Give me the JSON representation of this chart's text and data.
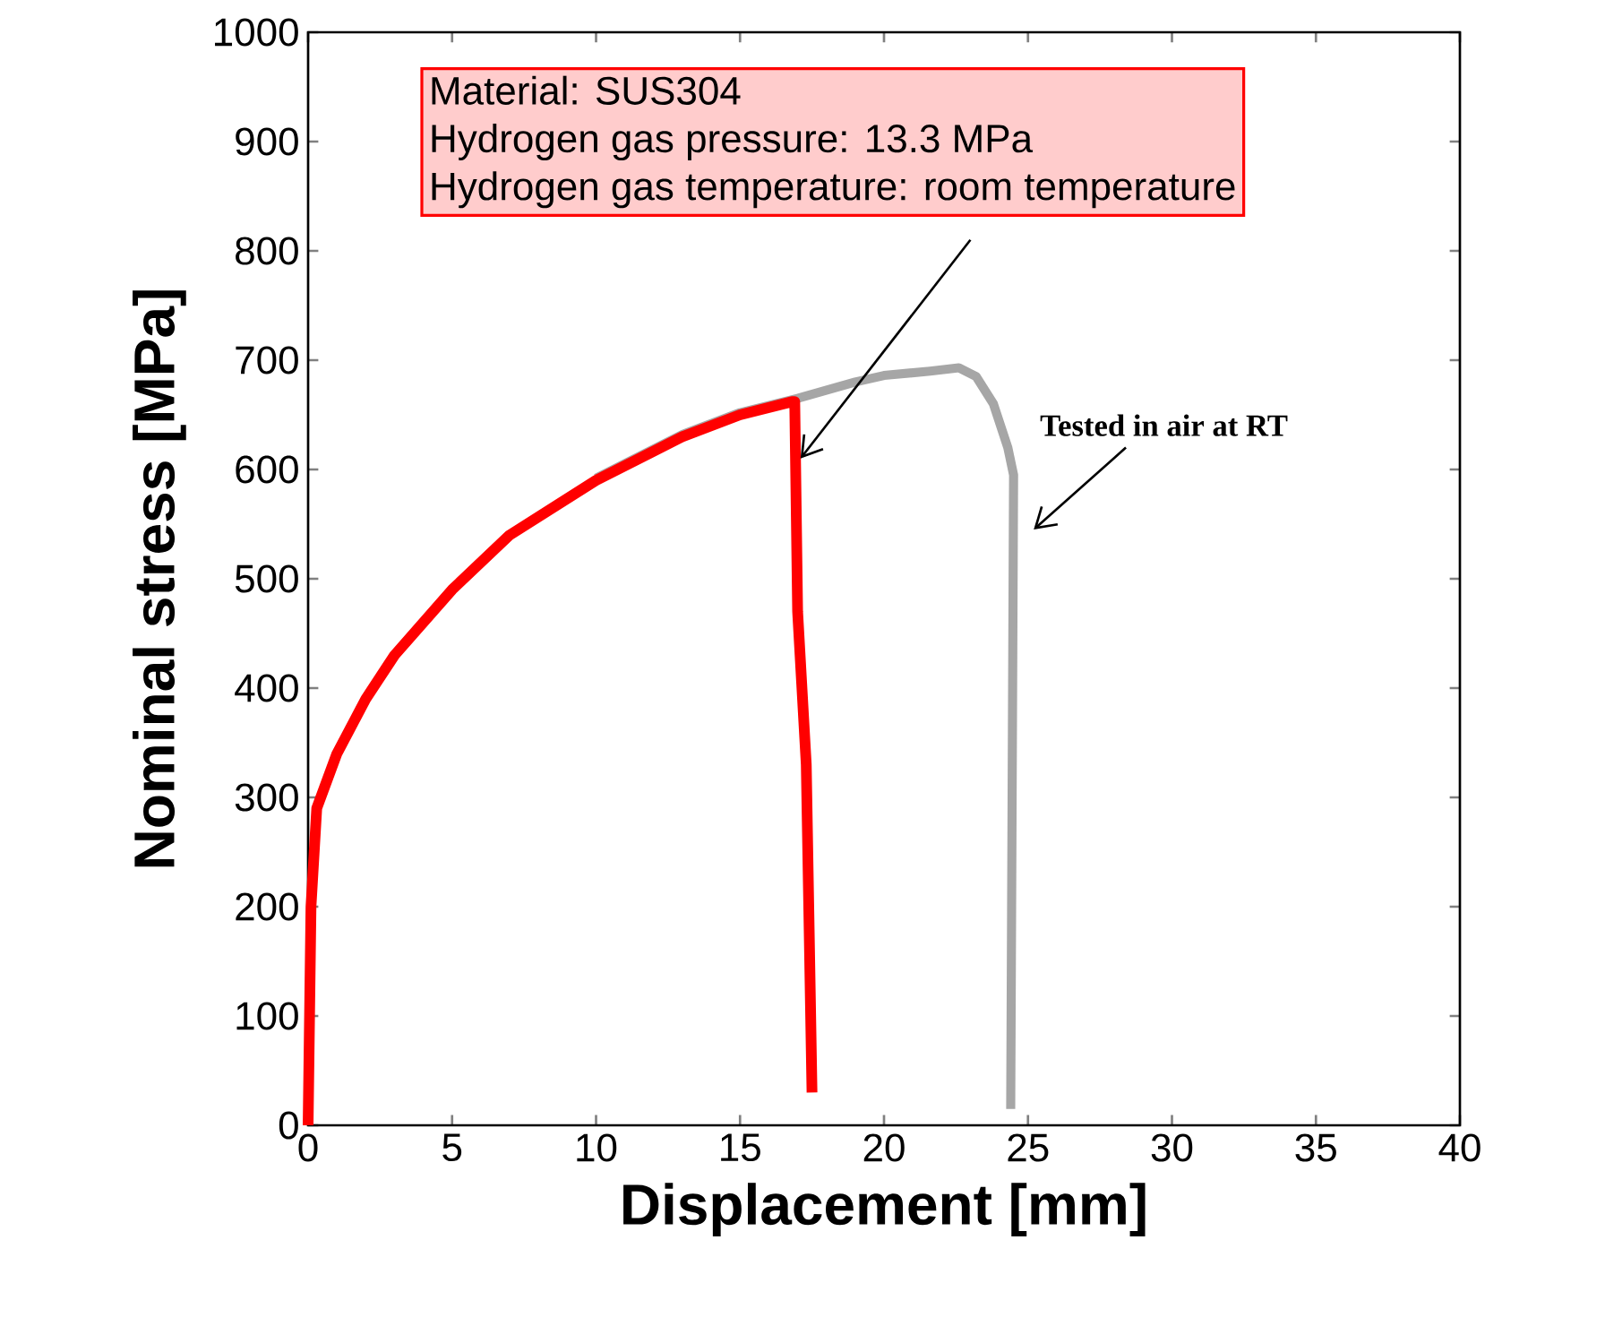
{
  "chart_data": {
    "type": "line",
    "xlabel": "Displacement  [mm]",
    "ylabel": "Nominal stress [MPa]",
    "xlim": [
      0,
      40
    ],
    "ylim": [
      0,
      1000
    ],
    "xticks": [
      0,
      5,
      10,
      15,
      20,
      25,
      30,
      35,
      40
    ],
    "yticks": [
      0,
      100,
      200,
      300,
      400,
      500,
      600,
      700,
      800,
      900,
      1000
    ],
    "grid": false,
    "marker": "none",
    "line_style": "solid",
    "series": [
      {
        "color": "#a6a6a6",
        "x": [
          0,
          0.1,
          0.3,
          1,
          2,
          3,
          5,
          7,
          10,
          13,
          15,
          17,
          19,
          20,
          21.6,
          22.6,
          23.2,
          23.8,
          24.3,
          24.5,
          24.4
        ],
        "values": [
          0,
          200,
          290,
          null,
          null,
          null,
          null,
          null,
          592,
          632,
          652,
          665,
          680,
          686,
          690,
          693,
          685,
          660,
          620,
          595,
          15
        ]
      },
      {
        "color": "#ff0000",
        "x": [
          0,
          0.1,
          0.3,
          1,
          2,
          3,
          5,
          7,
          10,
          13,
          15,
          16.8,
          16.9,
          17.0,
          17.3,
          17.5
        ],
        "values": [
          0,
          200,
          290,
          340,
          390,
          430,
          490,
          540,
          590,
          630,
          650,
          662,
          662,
          470,
          330,
          30
        ]
      }
    ],
    "annotations": [
      "Material: SUS304",
      "Hydrogen gas pressure: 13.3 MPa",
      {
        "text": "Hydrogen gas temperature: room temperature",
        "x": 17.1,
        "y": 610
      },
      "Tested in air at RT"
    ]
  }
}
